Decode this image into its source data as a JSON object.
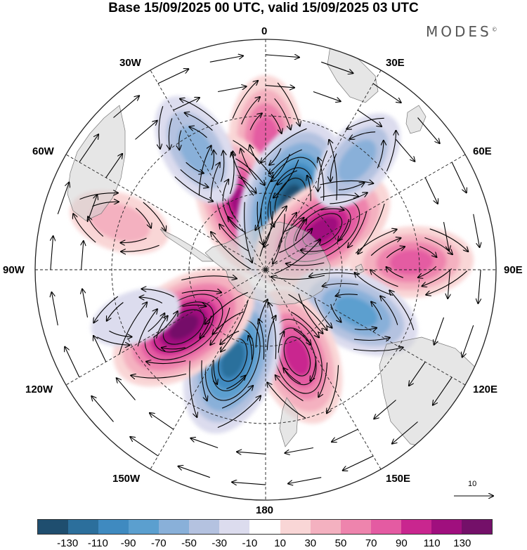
{
  "title": "Base 15/09/2025 00 UTC, valid 15/09/2025 03 UTC",
  "brand": "MODES",
  "brand_mark": "©",
  "longitude_labels": {
    "n0": "0",
    "e30": "30E",
    "e60": "60E",
    "e90": "90E",
    "e120": "120E",
    "e150": "150E",
    "s180": "180",
    "w150": "150W",
    "w120": "120W",
    "w90": "90W",
    "w60": "60W",
    "w30": "30W"
  },
  "reference_vector": {
    "label": "10"
  },
  "colorbar": {
    "colors": [
      "#1f4e6f",
      "#2c6f9c",
      "#3f8ac0",
      "#5b9fcf",
      "#89b0d9",
      "#b4c2e0",
      "#dcdcee",
      "#ffffff",
      "#f9d6d6",
      "#f4b1c0",
      "#ee84ad",
      "#e45ba2",
      "#c9268f",
      "#a00f7e",
      "#741069"
    ],
    "tick_labels": [
      "-130",
      "-110",
      "-90",
      "-70",
      "-50",
      "-30",
      "-10",
      "10",
      "30",
      "50",
      "70",
      "90",
      "110",
      "130"
    ]
  },
  "colors": {
    "land": "#d0d0d0",
    "coast": "#666666",
    "grid": "#222222"
  },
  "anomaly_centers": [
    {
      "sign": "positive",
      "lon": 0,
      "colat": 34,
      "peak": 80
    },
    {
      "sign": "positive",
      "lon": -20,
      "colat": 18,
      "peak": 110
    },
    {
      "sign": "negative",
      "lon": 20,
      "colat": 19,
      "peak": -140
    },
    {
      "sign": "positive",
      "lon": 55,
      "colat": 18,
      "peak": 120
    },
    {
      "sign": "negative",
      "lon": 40,
      "colat": 37,
      "peak": -55
    },
    {
      "sign": "positive",
      "lon": 87,
      "colat": 38,
      "peak": 75
    },
    {
      "sign": "negative",
      "lon": 115,
      "colat": 26,
      "peak": -85
    },
    {
      "sign": "positive",
      "lon": 160,
      "colat": 24,
      "peak": 100
    },
    {
      "sign": "negative",
      "lon": -160,
      "colat": 25,
      "peak": -120
    },
    {
      "sign": "positive",
      "lon": -125,
      "colat": 26,
      "peak": 130
    },
    {
      "sign": "negative",
      "lon": -30,
      "colat": 36,
      "peak": -65
    },
    {
      "sign": "positive",
      "lon": -72,
      "colat": 40,
      "peak": 40
    },
    {
      "sign": "negative",
      "lon": -110,
      "colat": 36,
      "peak": -25
    }
  ]
}
